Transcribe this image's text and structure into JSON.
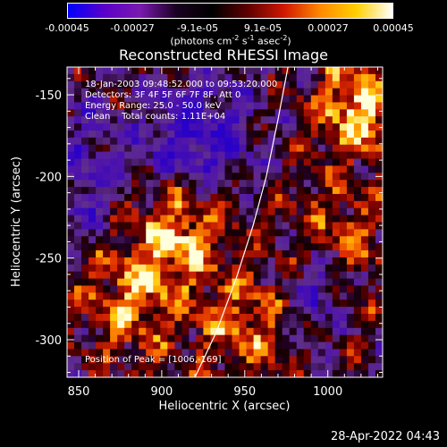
{
  "colorbar": {
    "ticks": [
      "-0.00045",
      "-0.00027",
      "-9.1e-05",
      "9.1e-05",
      "0.00027",
      "0.00045"
    ],
    "unit_prefix": "(photons cm",
    "unit_exp1": "-2",
    "unit_mid": " s",
    "unit_exp2": "-1",
    "unit_mid2": " asec",
    "unit_exp3": "-2",
    "unit_suffix": ")",
    "colors": [
      "#0000ff",
      "#5a00c8",
      "#7a1ab0",
      "#1a0022",
      "#000000",
      "#600000",
      "#d01800",
      "#ff8a00",
      "#ffd000",
      "#ffffff"
    ]
  },
  "info": {
    "line1": "18-Jan-2003 09:48:52.000 to 09:53:20.000",
    "line2": "Detectors: 3F 4F 5F 6F 7F 8F, Att 0",
    "line3": "Energy Range: 25.0 - 50.0 keV",
    "line4": "Clean    Total counts: 1.11E+04"
  },
  "peak_label": "Position of Peak = [1006,-169]",
  "timestamp": "28-Apr-2022 04:43",
  "chart_data": {
    "type": "heatmap",
    "title": "Reconstructed RHESSI Image",
    "xlabel": "Heliocentric X (arcsec)",
    "ylabel": "Heliocentric Y (arcsec)",
    "xlim": [
      843,
      1033
    ],
    "ylim": [
      -323,
      -133
    ],
    "xticks": [
      850,
      900,
      950,
      1000
    ],
    "yticks": [
      -150,
      -200,
      -250,
      -300
    ],
    "xtick_labels": [
      "850",
      "900",
      "950",
      "1000"
    ],
    "ytick_labels": [
      "-150",
      "-200",
      "-250",
      "-300"
    ],
    "value_range": [
      -0.00045,
      0.00045
    ],
    "limb_curve": [
      [
        920,
        -323
      ],
      [
        933,
        -295
      ],
      [
        945,
        -262
      ],
      [
        955,
        -230
      ],
      [
        963,
        -200
      ],
      [
        970,
        -165
      ],
      [
        976,
        -133
      ]
    ]
  }
}
